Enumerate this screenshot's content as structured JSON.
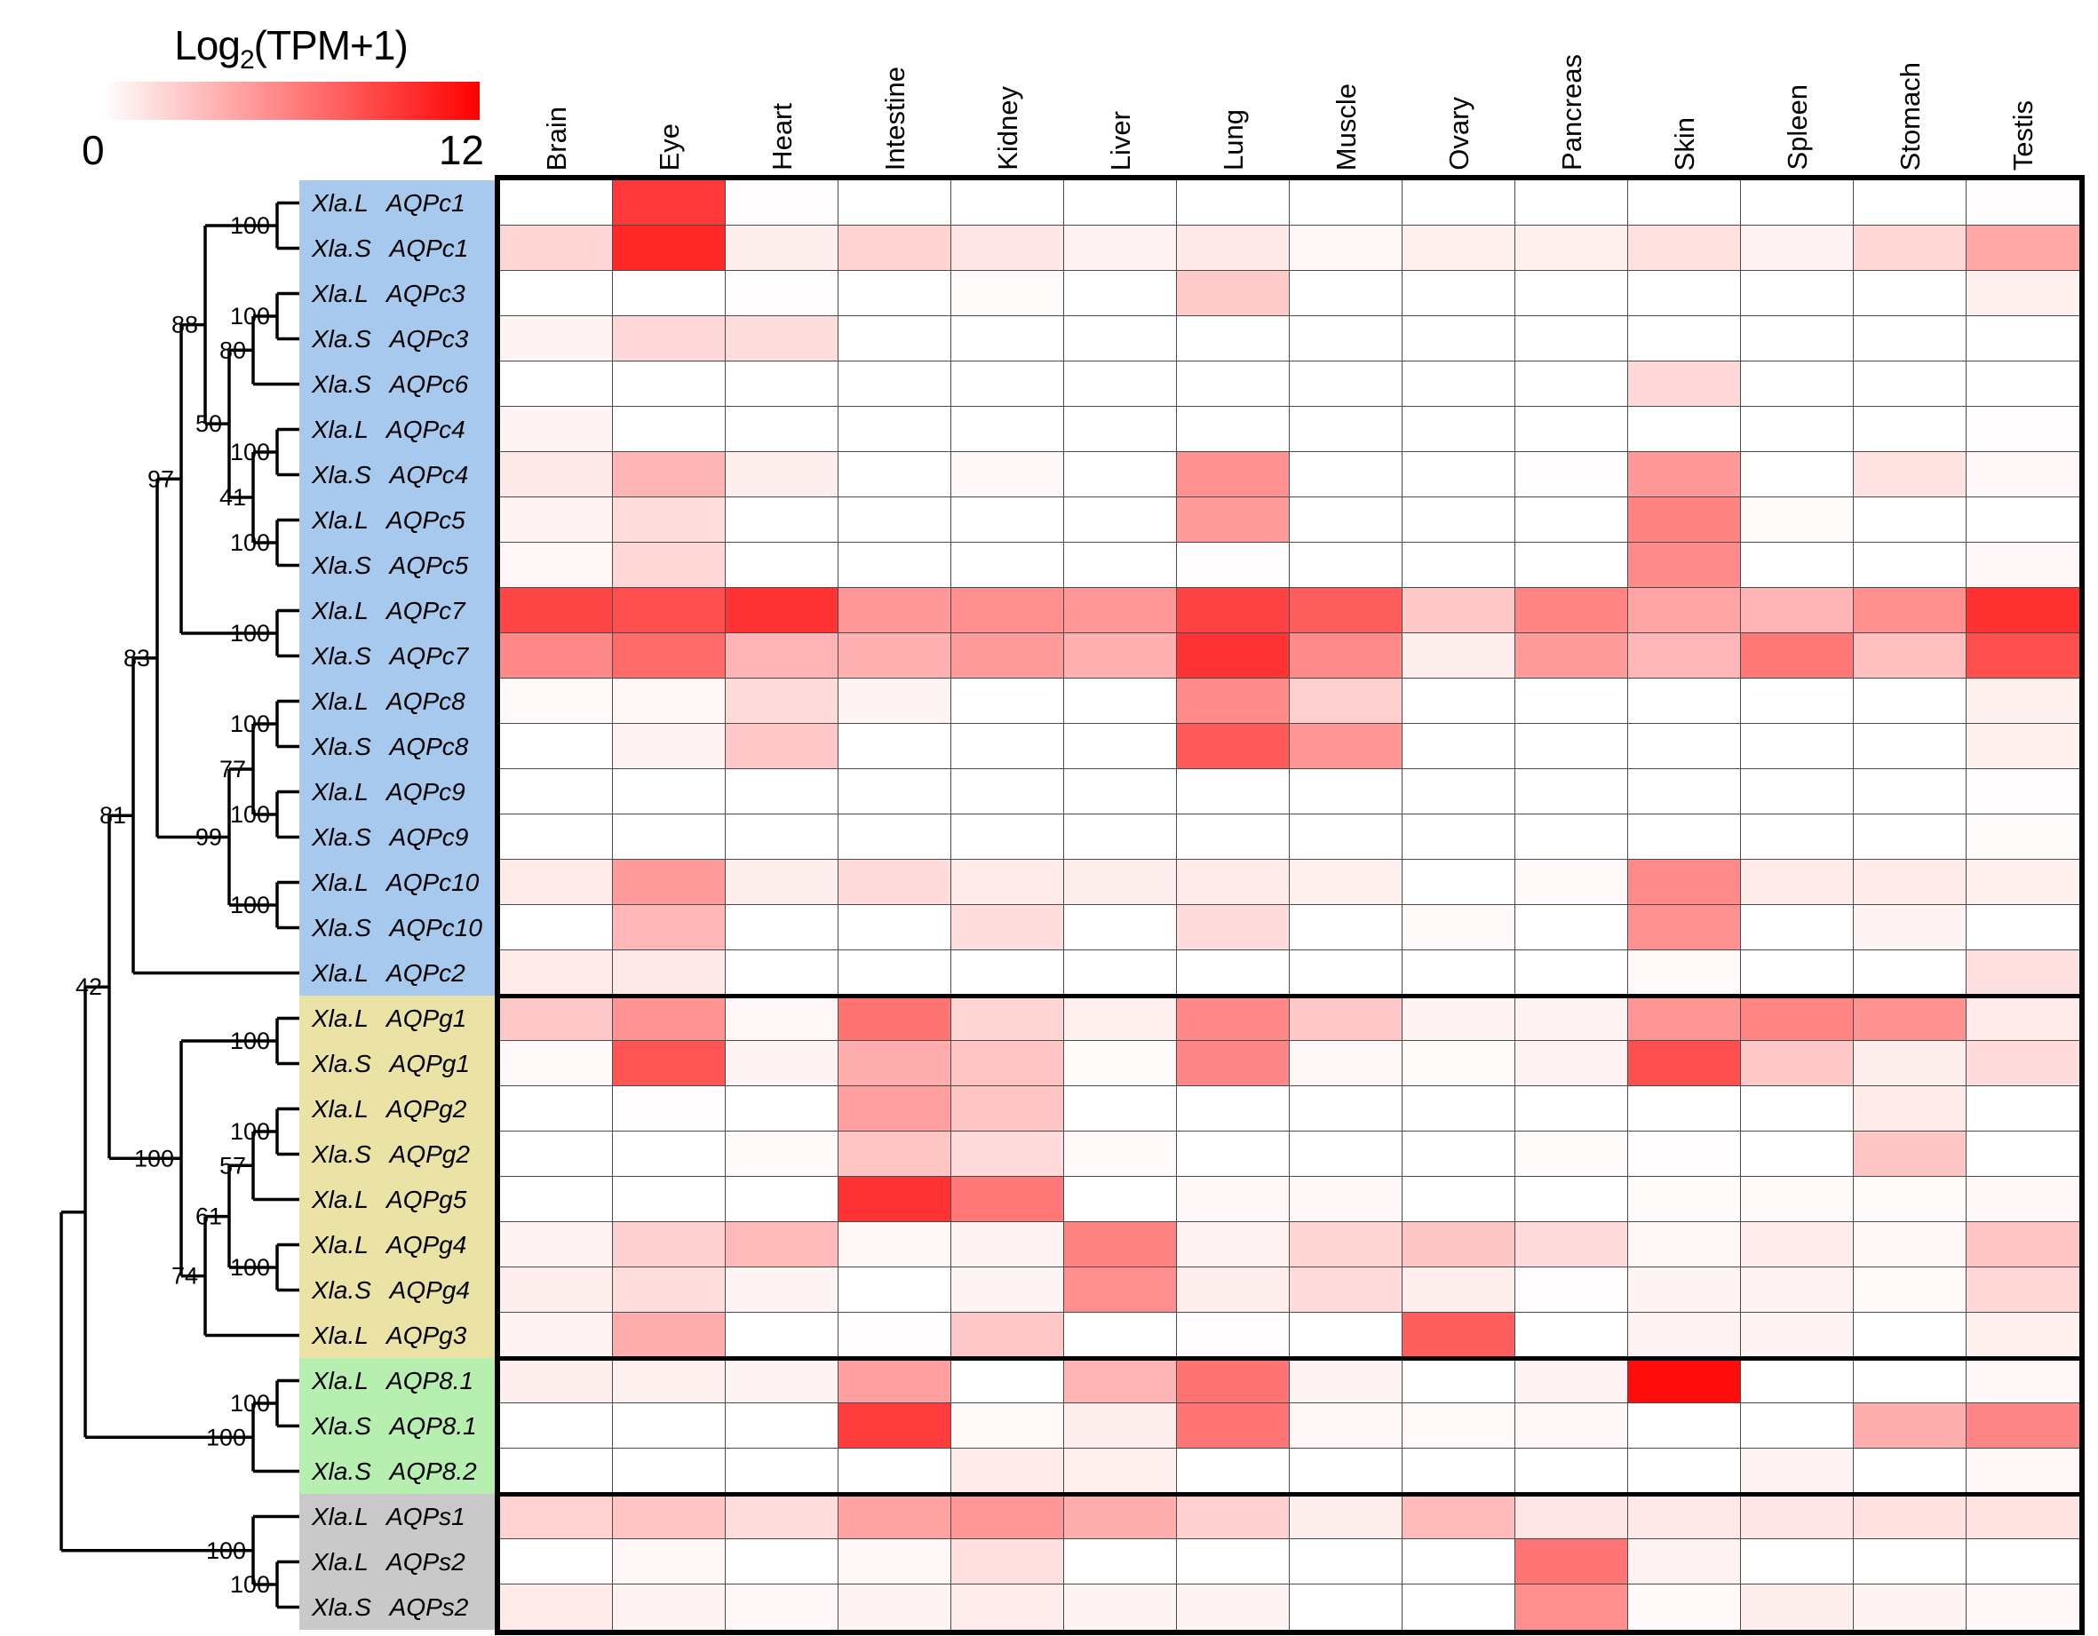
{
  "legend": {
    "log": "Log",
    "sub": "2",
    "rest": "(TPM+1)",
    "min": "0",
    "max": "12"
  },
  "chart_data": {
    "type": "heatmap",
    "title": "Log2(TPM+1)",
    "colorscale": {
      "min": 0,
      "max": 12,
      "min_color": "#ffffff",
      "max_color": "#ff0000"
    },
    "columns": [
      "Brain",
      "Eye",
      "Heart",
      "Intestine",
      "Kidney",
      "Liver",
      "Lung",
      "Muscle",
      "Ovary",
      "Pancreas",
      "Skin",
      "Spleen",
      "Stomach",
      "Testis"
    ],
    "groups": [
      {
        "id": "AQPc",
        "color": "#a7c9ee",
        "count": 18
      },
      {
        "id": "AQPg",
        "color": "#ebe2a5",
        "count": 8
      },
      {
        "id": "AQP8",
        "color": "#b6efb0",
        "count": 3
      },
      {
        "id": "AQPs",
        "color": "#c9c9c9",
        "count": 3
      }
    ],
    "rows": [
      {
        "label": "Xla.L AQPc1",
        "group": "AQPc",
        "values": [
          0,
          9.3,
          0.1,
          0,
          0,
          0,
          0,
          0,
          0,
          0,
          0,
          0,
          0,
          0.1
        ]
      },
      {
        "label": "Xla.S AQPc1",
        "group": "AQPc",
        "values": [
          2.0,
          10.2,
          0.8,
          2.1,
          1.2,
          0.6,
          1.1,
          0.4,
          0.7,
          0.7,
          1.4,
          0.5,
          1.9,
          4.2
        ]
      },
      {
        "label": "Xla.L AQPc3",
        "group": "AQPc",
        "values": [
          0,
          0,
          0.1,
          0,
          0.2,
          0,
          2.5,
          0,
          0,
          0,
          0,
          0,
          0,
          0.7
        ]
      },
      {
        "label": "Xla.S AQPc3",
        "group": "AQPc",
        "values": [
          0.5,
          1.8,
          1.6,
          0,
          0,
          0,
          0,
          0,
          0,
          0,
          0,
          0,
          0,
          0
        ]
      },
      {
        "label": "Xla.S AQPc6",
        "group": "AQPc",
        "values": [
          0,
          0,
          0,
          0,
          0,
          0,
          0,
          0,
          0,
          0,
          1.8,
          0,
          0,
          0
        ]
      },
      {
        "label": "Xla.L AQPc4",
        "group": "AQPc",
        "values": [
          0.5,
          0,
          0,
          0,
          0,
          0,
          0,
          0,
          0,
          0,
          0,
          0,
          0,
          0.1
        ]
      },
      {
        "label": "Xla.S AQPc4",
        "group": "AQPc",
        "values": [
          1.1,
          3.5,
          0.8,
          0,
          0.4,
          0,
          5.2,
          0,
          0,
          0.1,
          4.8,
          0,
          1.3,
          0.4
        ]
      },
      {
        "label": "Xla.L AQPc5",
        "group": "AQPc",
        "values": [
          0.5,
          1.6,
          0,
          0,
          0,
          0,
          4.7,
          0,
          0,
          0,
          5.9,
          0.2,
          0,
          0
        ]
      },
      {
        "label": "Xla.S AQPc5",
        "group": "AQPc",
        "values": [
          0.4,
          1.9,
          0,
          0,
          0,
          0,
          0.1,
          0,
          0,
          0,
          5.5,
          0,
          0,
          0.4
        ]
      },
      {
        "label": "Xla.L AQPc7",
        "group": "AQPc",
        "values": [
          8.7,
          8.3,
          9.6,
          4.8,
          5.3,
          4.8,
          8.9,
          7.6,
          2.6,
          5.8,
          4.3,
          3.5,
          5.3,
          9.7
        ]
      },
      {
        "label": "Xla.S AQPc7",
        "group": "AQPc",
        "values": [
          5.6,
          7.0,
          3.5,
          3.7,
          4.7,
          3.7,
          9.6,
          5.5,
          0.8,
          4.7,
          3.4,
          6.4,
          3.0,
          8.3
        ]
      },
      {
        "label": "Xla.L AQPc8",
        "group": "AQPc",
        "values": [
          0.3,
          0.4,
          1.7,
          0.5,
          0,
          0,
          5.5,
          2.3,
          0,
          0,
          0,
          0,
          0,
          0.7
        ]
      },
      {
        "label": "Xla.S AQPc8",
        "group": "AQPc",
        "values": [
          0,
          0.6,
          2.6,
          0,
          0,
          0,
          7.8,
          5.0,
          0,
          0,
          0,
          0,
          0,
          0.7
        ]
      },
      {
        "label": "Xla.L AQPc9",
        "group": "AQPc",
        "values": [
          0,
          0,
          0,
          0,
          0,
          0,
          0,
          0,
          0,
          0,
          0,
          0,
          0,
          0.1
        ]
      },
      {
        "label": "Xla.S AQPc9",
        "group": "AQPc",
        "values": [
          0,
          0,
          0,
          0,
          0,
          0,
          0,
          0,
          0,
          0,
          0,
          0,
          0,
          0.2
        ]
      },
      {
        "label": "Xla.L AQPc10",
        "group": "AQPc",
        "values": [
          1.0,
          4.7,
          0.8,
          1.7,
          1.0,
          0.8,
          1.0,
          0.7,
          0,
          0.3,
          5.5,
          1.0,
          1.0,
          0.7
        ]
      },
      {
        "label": "Xla.S AQPc10",
        "group": "AQPc",
        "values": [
          0,
          3.4,
          0,
          0,
          1.6,
          0,
          1.7,
          0,
          0.3,
          0,
          5.2,
          0,
          0.5,
          0
        ]
      },
      {
        "label": "Xla.L AQPc2",
        "group": "AQPc",
        "values": [
          1.0,
          1.1,
          0,
          0,
          0,
          0,
          0,
          0,
          0,
          0,
          0.3,
          0,
          0,
          1.5
        ]
      },
      {
        "label": "Xla.L AQPg1",
        "group": "AQPg",
        "values": [
          2.6,
          5.1,
          0.4,
          6.6,
          2.0,
          0.7,
          5.6,
          2.6,
          0.5,
          0.6,
          5.0,
          5.8,
          5.2,
          1.0
        ]
      },
      {
        "label": "Xla.S AQPg1",
        "group": "AQPg",
        "values": [
          0.3,
          8.0,
          0.5,
          3.8,
          2.8,
          0.2,
          5.7,
          0.4,
          0.2,
          0.6,
          8.3,
          2.6,
          0.8,
          1.7
        ]
      },
      {
        "label": "Xla.L AQPg2",
        "group": "AQPg",
        "values": [
          0,
          0.1,
          0,
          4.5,
          2.8,
          0,
          0,
          0,
          0,
          0,
          0,
          0,
          1.0,
          0
        ]
      },
      {
        "label": "Xla.S AQPg2",
        "group": "AQPg",
        "values": [
          0,
          0,
          0.3,
          2.8,
          1.7,
          0.3,
          0,
          0,
          0,
          0.2,
          0.1,
          0,
          2.7,
          0
        ]
      },
      {
        "label": "Xla.L AQPg5",
        "group": "AQPg",
        "values": [
          0,
          0,
          0,
          9.6,
          6.4,
          0,
          0.4,
          0.4,
          0,
          0,
          0.2,
          0.3,
          0.2,
          0.4
        ]
      },
      {
        "label": "Xla.L AQPg4",
        "group": "AQPg",
        "values": [
          0.5,
          2.2,
          3.2,
          0.4,
          0.5,
          5.9,
          0.6,
          2.0,
          2.7,
          1.7,
          0.4,
          0.9,
          0.4,
          2.8
        ]
      },
      {
        "label": "Xla.S AQPg4",
        "group": "AQPg",
        "values": [
          0.8,
          1.6,
          0.5,
          0,
          0.5,
          5.3,
          0.8,
          1.7,
          0.8,
          0.1,
          0.5,
          0.6,
          0.3,
          1.9
        ]
      },
      {
        "label": "Xla.L AQPg3",
        "group": "AQPg",
        "values": [
          0.5,
          3.9,
          0,
          0.1,
          2.6,
          0,
          0.1,
          0,
          7.6,
          0,
          0.6,
          0.5,
          0,
          0.7
        ]
      },
      {
        "label": "Xla.L AQP8.1",
        "group": "AQP8",
        "values": [
          0.8,
          0.7,
          0.5,
          4.5,
          0,
          3.5,
          6.6,
          0.5,
          0,
          0.6,
          11.4,
          0,
          0,
          0.4
        ]
      },
      {
        "label": "Xla.S AQP8.1",
        "group": "AQP8",
        "values": [
          0,
          0,
          0,
          9.2,
          0.3,
          0.8,
          6.5,
          0.4,
          0.3,
          0.4,
          0,
          0,
          3.8,
          5.7
        ]
      },
      {
        "label": "Xla.S AQP8.2",
        "group": "AQP8",
        "values": [
          0,
          0,
          0,
          0,
          1.0,
          0.7,
          0,
          0,
          0,
          0,
          0,
          0.5,
          0,
          0.4
        ]
      },
      {
        "label": "Xla.L AQPs1",
        "group": "AQPs",
        "values": [
          2.1,
          2.8,
          1.6,
          4.4,
          4.9,
          3.8,
          2.2,
          0.8,
          3.2,
          1.2,
          1.1,
          1.2,
          1.4,
          1.3
        ]
      },
      {
        "label": "Xla.L AQPs2",
        "group": "AQPs",
        "values": [
          0,
          0.4,
          0,
          0.4,
          1.5,
          0,
          0,
          0,
          0,
          6.5,
          0.6,
          0,
          0,
          0
        ]
      },
      {
        "label": "Xla.S AQPs2",
        "group": "AQPs",
        "values": [
          1.0,
          0.5,
          0.4,
          0.5,
          0.9,
          0.5,
          0.5,
          0,
          0,
          5.3,
          0.3,
          0.8,
          0.5,
          0.4
        ]
      }
    ],
    "tree": {
      "b": null,
      "children": [
        {
          "b": null,
          "children": [
            {
              "b": "42",
              "children": [
                {
                  "b": "81",
                  "children": [
                    {
                      "b": "83",
                      "children": [
                        {
                          "b": "97",
                          "children": [
                            {
                              "b": "88",
                              "children": [
                                {
                                  "b": "100",
                                  "children": [
                                    {
                                      "leaf": 0
                                    },
                                    {
                                      "leaf": 1
                                    }
                                  ]
                                },
                                {
                                  "b": "50",
                                  "children": [
                                    {
                                      "b": "80",
                                      "children": [
                                        {
                                          "b": "100",
                                          "children": [
                                            {
                                              "leaf": 2
                                            },
                                            {
                                              "leaf": 3
                                            }
                                          ]
                                        },
                                        {
                                          "leaf": 4
                                        }
                                      ]
                                    },
                                    {
                                      "b": "41",
                                      "children": [
                                        {
                                          "b": "100",
                                          "children": [
                                            {
                                              "leaf": 5
                                            },
                                            {
                                              "leaf": 6
                                            }
                                          ]
                                        },
                                        {
                                          "b": "100",
                                          "children": [
                                            {
                                              "leaf": 7
                                            },
                                            {
                                              "leaf": 8
                                            }
                                          ]
                                        }
                                      ]
                                    }
                                  ]
                                }
                              ]
                            },
                            {
                              "b": "100",
                              "children": [
                                {
                                  "leaf": 9
                                },
                                {
                                  "leaf": 10
                                }
                              ]
                            }
                          ]
                        },
                        {
                          "b": "99",
                          "children": [
                            {
                              "b": "77",
                              "children": [
                                {
                                  "b": "100",
                                  "children": [
                                    {
                                      "leaf": 11
                                    },
                                    {
                                      "leaf": 12
                                    }
                                  ]
                                },
                                {
                                  "b": "100",
                                  "children": [
                                    {
                                      "leaf": 13
                                    },
                                    {
                                      "leaf": 14
                                    }
                                  ]
                                }
                              ]
                            },
                            {
                              "b": "100",
                              "children": [
                                {
                                  "leaf": 15
                                },
                                {
                                  "leaf": 16
                                }
                              ]
                            }
                          ]
                        }
                      ]
                    },
                    {
                      "leaf": 17
                    }
                  ]
                },
                {
                  "b": "100",
                  "children": [
                    {
                      "b": "100",
                      "children": [
                        {
                          "leaf": 18
                        },
                        {
                          "leaf": 19
                        }
                      ]
                    },
                    {
                      "b": "74",
                      "children": [
                        {
                          "b": "61",
                          "children": [
                            {
                              "b": "57",
                              "children": [
                                {
                                  "b": "100",
                                  "children": [
                                    {
                                      "leaf": 20
                                    },
                                    {
                                      "leaf": 21
                                    }
                                  ]
                                },
                                {
                                  "leaf": 22
                                }
                              ]
                            },
                            {
                              "b": "100",
                              "children": [
                                {
                                  "leaf": 23
                                },
                                {
                                  "leaf": 24
                                }
                              ]
                            }
                          ]
                        },
                        {
                          "leaf": 25
                        }
                      ]
                    }
                  ]
                }
              ]
            },
            {
              "b": "100",
              "children": [
                {
                  "b": "100",
                  "children": [
                    {
                      "leaf": 26
                    },
                    {
                      "leaf": 27
                    }
                  ]
                },
                {
                  "leaf": 28
                }
              ]
            }
          ]
        },
        {
          "b": "100",
          "children": [
            {
              "leaf": 29
            },
            {
              "b": "100",
              "children": [
                {
                  "leaf": 30
                },
                {
                  "leaf": 31
                }
              ]
            }
          ]
        }
      ]
    }
  }
}
